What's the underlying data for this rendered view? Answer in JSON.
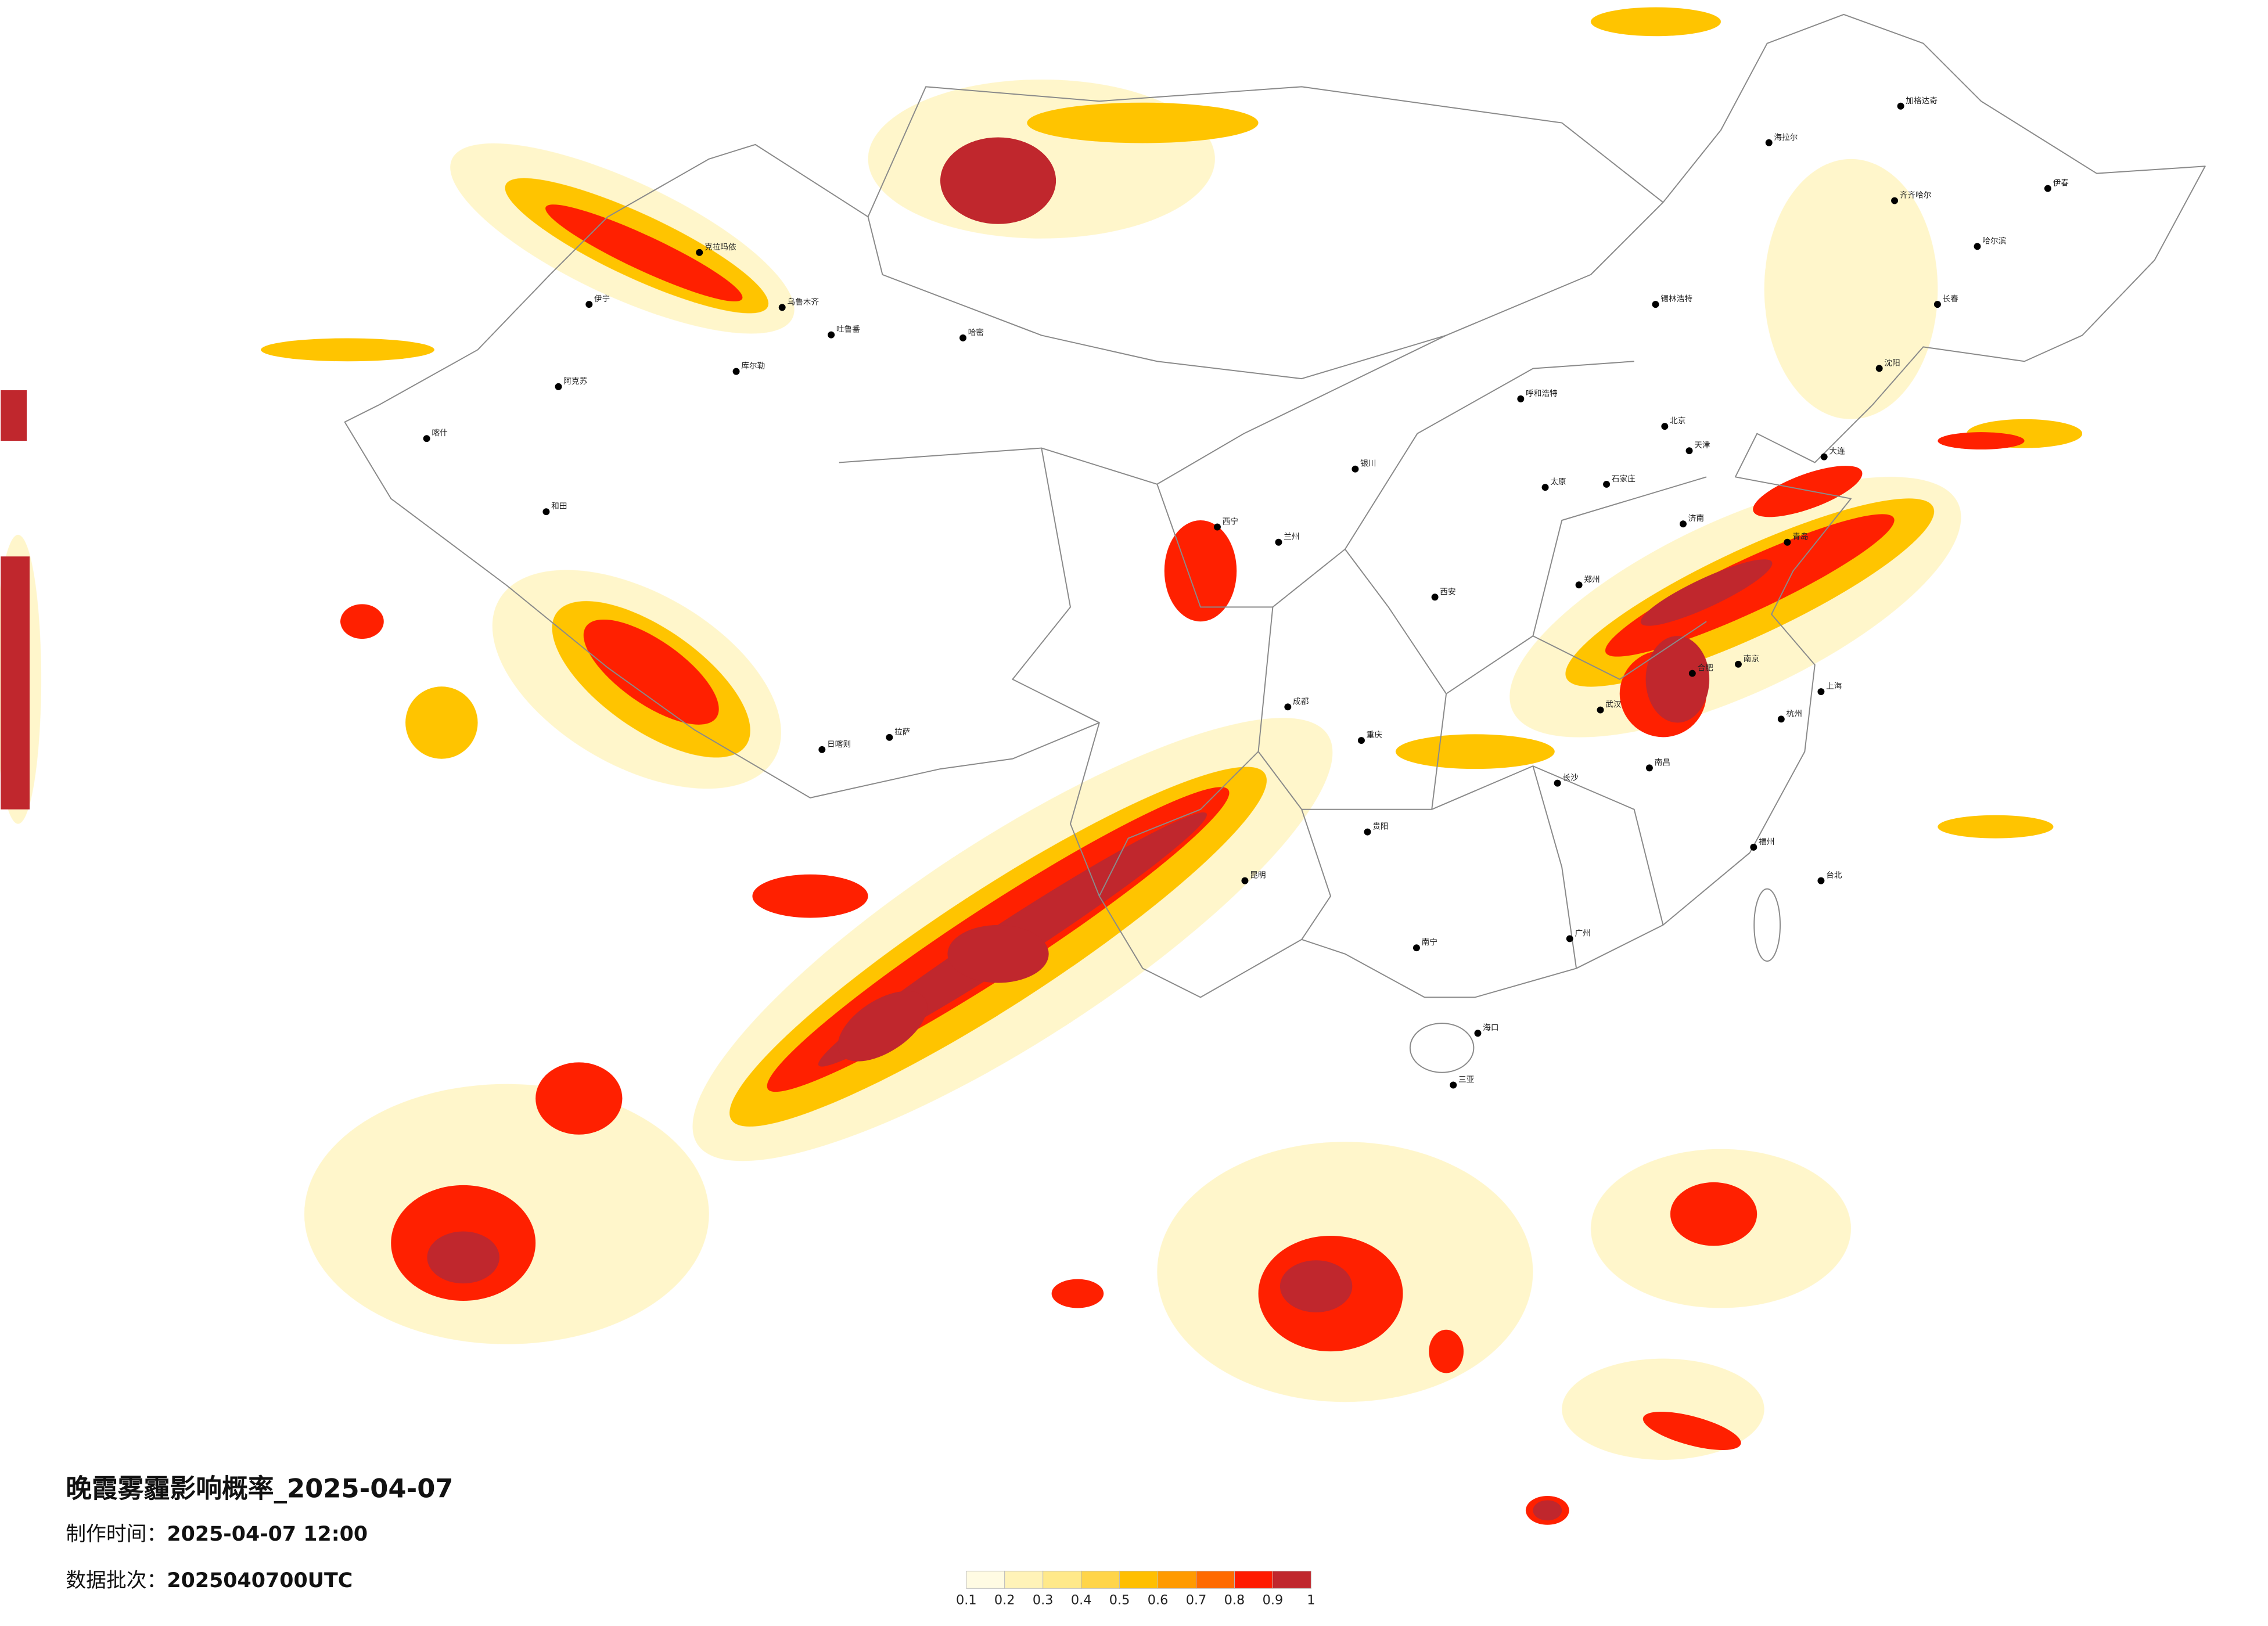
{
  "header": {
    "title": "晚霞雾霾影响概率_2025-04-07",
    "made_time": {
      "label": "制作时间：",
      "value": "2025-04-07 12:00"
    },
    "batch": {
      "label": "数据批次：",
      "value": "2025040700UTC"
    }
  },
  "legend": {
    "ticks": [
      0.1,
      0.2,
      0.3,
      0.4,
      0.5,
      0.6,
      0.7,
      0.8,
      0.9,
      1
    ],
    "colors": [
      "#fffbe3",
      "#fff3b8",
      "#ffe98a",
      "#ffd54a",
      "#ffbf00",
      "#ff9a00",
      "#ff6a00",
      "#ff1a00",
      "#c0272d"
    ]
  },
  "cities": [
    {
      "name": "乌鲁木齐",
      "lon": 87.6,
      "lat": 43.8
    },
    {
      "name": "克拉玛依",
      "lon": 84.9,
      "lat": 45.6
    },
    {
      "name": "伊宁",
      "lon": 81.3,
      "lat": 43.9
    },
    {
      "name": "阿克苏",
      "lon": 80.3,
      "lat": 41.2
    },
    {
      "name": "和田",
      "lon": 79.9,
      "lat": 37.1
    },
    {
      "name": "喀什",
      "lon": 76.0,
      "lat": 39.5
    },
    {
      "name": "哈密",
      "lon": 93.5,
      "lat": 42.8
    },
    {
      "name": "库尔勒",
      "lon": 86.1,
      "lat": 41.7
    },
    {
      "name": "吐鲁番",
      "lon": 89.2,
      "lat": 42.9
    },
    {
      "name": "拉萨",
      "lon": 91.1,
      "lat": 29.7
    },
    {
      "name": "日喀则",
      "lon": 88.9,
      "lat": 29.3
    },
    {
      "name": "西宁",
      "lon": 101.8,
      "lat": 36.6
    },
    {
      "name": "兰州",
      "lon": 103.8,
      "lat": 36.1
    },
    {
      "name": "银川",
      "lon": 106.3,
      "lat": 38.5
    },
    {
      "name": "呼和浩特",
      "lon": 111.7,
      "lat": 40.8
    },
    {
      "name": "锡林浩特",
      "lon": 116.1,
      "lat": 43.9
    },
    {
      "name": "北京",
      "lon": 116.4,
      "lat": 39.9
    },
    {
      "name": "天津",
      "lon": 117.2,
      "lat": 39.1
    },
    {
      "name": "石家庄",
      "lon": 114.5,
      "lat": 38.0
    },
    {
      "name": "太原",
      "lon": 112.5,
      "lat": 37.9
    },
    {
      "name": "济南",
      "lon": 117.0,
      "lat": 36.7
    },
    {
      "name": "青岛",
      "lon": 120.4,
      "lat": 36.1
    },
    {
      "name": "郑州",
      "lon": 113.6,
      "lat": 34.7
    },
    {
      "name": "西安",
      "lon": 108.9,
      "lat": 34.3
    },
    {
      "name": "成都",
      "lon": 104.1,
      "lat": 30.7
    },
    {
      "name": "重庆",
      "lon": 106.5,
      "lat": 29.6
    },
    {
      "name": "武汉",
      "lon": 114.3,
      "lat": 30.6
    },
    {
      "name": "长沙",
      "lon": 112.9,
      "lat": 28.2
    },
    {
      "name": "南昌",
      "lon": 115.9,
      "lat": 28.7
    },
    {
      "name": "合肥",
      "lon": 117.3,
      "lat": 31.8
    },
    {
      "name": "南京",
      "lon": 118.8,
      "lat": 32.1
    },
    {
      "name": "上海",
      "lon": 121.5,
      "lat": 31.2
    },
    {
      "name": "杭州",
      "lon": 120.2,
      "lat": 30.3
    },
    {
      "name": "福州",
      "lon": 119.3,
      "lat": 26.1
    },
    {
      "name": "广州",
      "lon": 113.3,
      "lat": 23.1
    },
    {
      "name": "南宁",
      "lon": 108.3,
      "lat": 22.8
    },
    {
      "name": "贵阳",
      "lon": 106.7,
      "lat": 26.6
    },
    {
      "name": "昆明",
      "lon": 102.7,
      "lat": 25.0
    },
    {
      "name": "海口",
      "lon": 110.3,
      "lat": 20.0
    },
    {
      "name": "三亚",
      "lon": 109.5,
      "lat": 18.3
    },
    {
      "name": "台北",
      "lon": 121.5,
      "lat": 25.0
    },
    {
      "name": "大连",
      "lon": 121.6,
      "lat": 38.9
    },
    {
      "name": "沈阳",
      "lon": 123.4,
      "lat": 41.8
    },
    {
      "name": "长春",
      "lon": 125.3,
      "lat": 43.9
    },
    {
      "name": "哈尔滨",
      "lon": 126.6,
      "lat": 45.8
    },
    {
      "name": "齐齐哈尔",
      "lon": 123.9,
      "lat": 47.3
    },
    {
      "name": "海拉尔",
      "lon": 119.8,
      "lat": 49.2
    },
    {
      "name": "加格达奇",
      "lon": 124.1,
      "lat": 50.4
    },
    {
      "name": "伊春",
      "lon": 128.9,
      "lat": 47.7
    }
  ]
}
